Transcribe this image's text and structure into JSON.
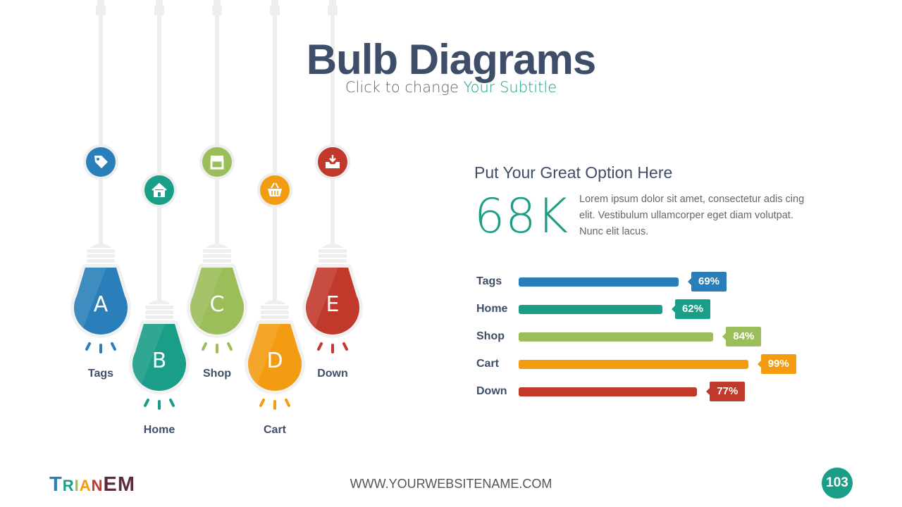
{
  "header": {
    "title": "Bulb Diagrams",
    "subtitle_prefix": "Click to change ",
    "subtitle_highlight": "Your Subtitle"
  },
  "bulbs": [
    {
      "letter": "A",
      "label": "Tags",
      "icon": "tag-icon",
      "color": "#2a7fba"
    },
    {
      "letter": "B",
      "label": "Home",
      "icon": "home-icon",
      "color": "#1a9e87"
    },
    {
      "letter": "C",
      "label": "Shop",
      "icon": "shop-icon",
      "color": "#9bbe5a"
    },
    {
      "letter": "D",
      "label": "Cart",
      "icon": "basket-icon",
      "color": "#f39c12"
    },
    {
      "letter": "E",
      "label": "Down",
      "icon": "download-inbox-icon",
      "color": "#c0392b"
    }
  ],
  "option": {
    "title": "Put Your Great Option Here",
    "big_number": "68K",
    "text": "Lorem ipsum dolor sit amet, consectetur adis cing elit. Vestibulum ullamcorper eget diam volutpat. Nunc elit lacus."
  },
  "bars": [
    {
      "label": "Tags",
      "value": 69,
      "display": "69%",
      "color": "#2a7fba"
    },
    {
      "label": "Home",
      "value": 62,
      "display": "62%",
      "color": "#1a9e87"
    },
    {
      "label": "Shop",
      "value": 84,
      "display": "84%",
      "color": "#9bbe5a"
    },
    {
      "label": "Cart",
      "value": 99,
      "display": "99%",
      "color": "#f39c12"
    },
    {
      "label": "Down",
      "value": 77,
      "display": "77%",
      "color": "#c0392b"
    }
  ],
  "footer": {
    "logo": "TrianEM",
    "logo_letters": [
      {
        "t": "T",
        "c": "#2a7fba"
      },
      {
        "t": "R",
        "c": "#1a9e87"
      },
      {
        "t": "I",
        "c": "#9bbe5a"
      },
      {
        "t": "A",
        "c": "#f39c12"
      },
      {
        "t": "N",
        "c": "#c0392b"
      },
      {
        "t": "EM",
        "c": "#5b2a3e"
      }
    ],
    "url": "WWW.YOURWEBSITENAME.COM",
    "page_number": "103"
  }
}
